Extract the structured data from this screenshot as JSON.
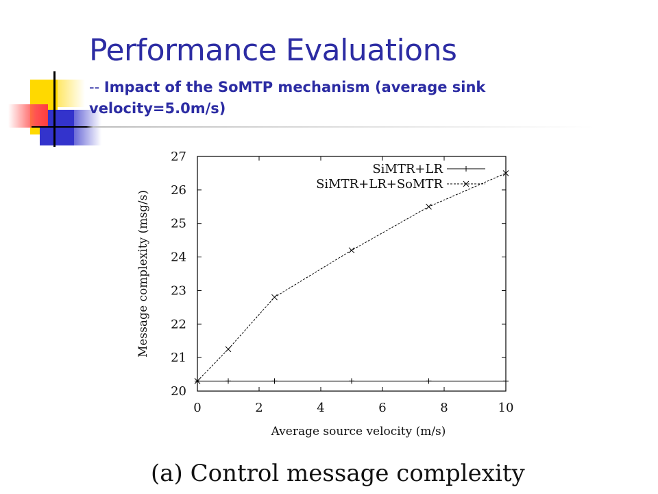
{
  "slide": {
    "title": "Performance Evaluations",
    "subtitle_prefix": "-- ",
    "subtitle": "Impact of the SoMTP mechanism (average sink velocity=5.0m/s)"
  },
  "figure": {
    "caption": "(a) Control message complexity"
  },
  "chart_data": {
    "type": "line",
    "xlabel": "Average source velocity (m/s)",
    "ylabel": "Message complexity (msg/s)",
    "xlim": [
      0,
      10
    ],
    "ylim": [
      20,
      27
    ],
    "xticks": [
      0,
      2,
      4,
      6,
      8,
      10
    ],
    "yticks": [
      20,
      21,
      22,
      23,
      24,
      25,
      26,
      27
    ],
    "legend_position": "top-right",
    "grid": false,
    "series": [
      {
        "name": "SiMTR+LR",
        "marker": "+",
        "style": "solid",
        "x": [
          0,
          1,
          2.5,
          5,
          7.5,
          10
        ],
        "y": [
          20.3,
          20.3,
          20.3,
          20.3,
          20.3,
          20.3
        ]
      },
      {
        "name": "SiMTR+LR+SoMTR",
        "marker": "x",
        "style": "dashed",
        "x": [
          0,
          1,
          2.5,
          5,
          7.5,
          10
        ],
        "y": [
          20.3,
          21.25,
          22.8,
          24.2,
          25.5,
          26.5
        ]
      }
    ]
  }
}
